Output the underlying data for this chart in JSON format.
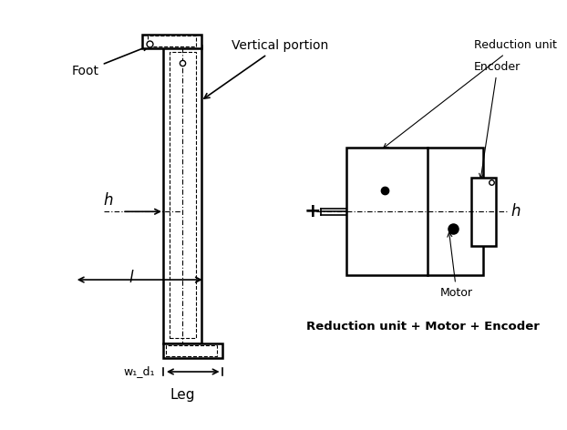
{
  "bg_color": "#ffffff",
  "line_color": "#000000",
  "fig_width": 6.22,
  "fig_height": 4.72,
  "title": "Leg",
  "foot_label": "Foot",
  "vertical_label": "Vertical portion",
  "h_label_left": "h",
  "h_label_right": "h",
  "l_label": "l",
  "w1d1_label": "w₁_d₁",
  "reduction_label": "Reduction unit + Motor + Encoder",
  "reduction_unit_label": "Reduction unit",
  "encoder_label": "Encoder",
  "motor_label": "Motor",
  "plus_symbol": "+"
}
